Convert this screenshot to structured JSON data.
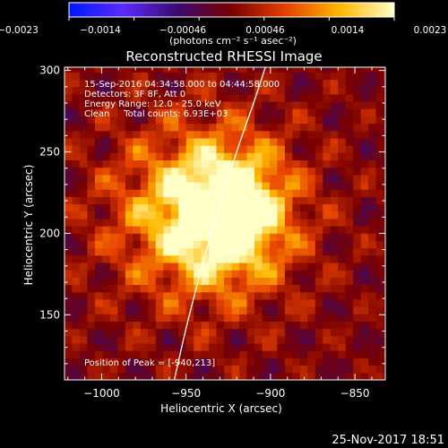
{
  "colorbar": {
    "tick_labels": [
      "−0.0023",
      "−0.0014",
      "−0.00046",
      "0.00046",
      "0.0014",
      "0.0023"
    ],
    "unit_label": "(photons cm⁻² s⁻¹ asec⁻²)",
    "colormap": [
      "#0018ff",
      "#5a2bff",
      "#3a0a70",
      "#7a0000",
      "#e64000",
      "#ffb800",
      "#ffffc8"
    ]
  },
  "info": {
    "time_range": "15-Sep-2016 04:34:58.000 to 04:44:58.000",
    "detectors": "Detectors: 3F 8F, Att 0",
    "energy_range": "Energy Range: 12.0 - 25.0 keV",
    "method_counts": "Clean     Total counts: 6.93E+03",
    "peak_position": "Position of Peak = [-940,213]"
  },
  "footer_date": "25-Nov-2017 18:51",
  "chart_data": {
    "type": "heatmap",
    "title": "Reconstructed RHESSI Image",
    "xlabel": "Heliocentric X (arcsec)",
    "ylabel": "Heliocentric Y (arcsec)",
    "xlim": [
      -1022,
      -832
    ],
    "ylim": [
      110,
      302
    ],
    "xticks": [
      -1000,
      -950,
      -900,
      -850
    ],
    "xtick_labels": [
      "−1000",
      "−950",
      "−900",
      "−850"
    ],
    "yticks": [
      150,
      200,
      250,
      300
    ],
    "ytick_labels": [
      "150",
      "200",
      "250",
      "300"
    ],
    "color_range": [
      -0.0023,
      0.0023
    ],
    "peak": {
      "x": -940,
      "y": 213
    },
    "secondary_peaks": [
      {
        "x": -923,
        "y": 225
      },
      {
        "x": -925,
        "y": 200
      }
    ],
    "limb_curve": [
      {
        "x": -957,
        "y": 110
      },
      {
        "x": -948,
        "y": 150
      },
      {
        "x": -935,
        "y": 200
      },
      {
        "x": -920,
        "y": 250
      },
      {
        "x": -910,
        "y": 280
      },
      {
        "x": -903,
        "y": 302
      }
    ],
    "grid": false
  }
}
